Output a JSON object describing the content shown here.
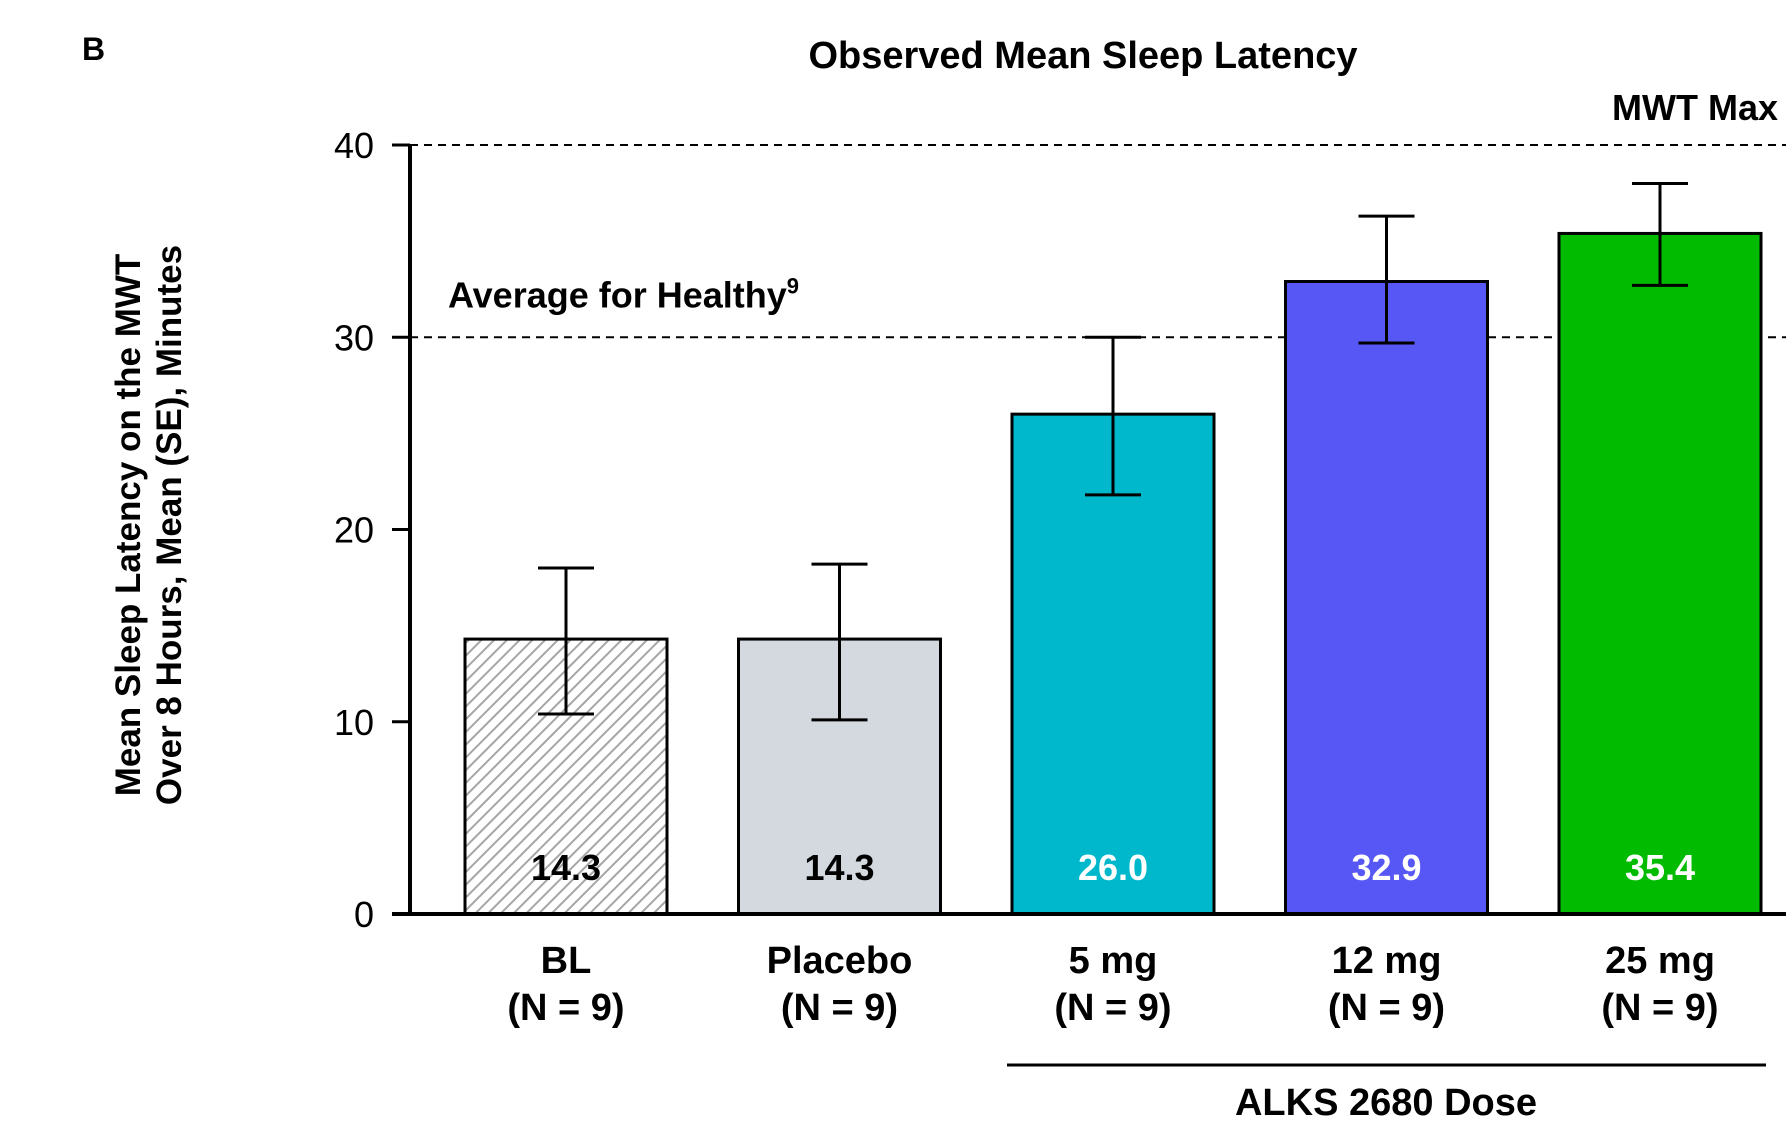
{
  "panel_label": "B",
  "colors": {
    "bl_fill": "#ffffff",
    "bl_hatch": "#a6a6a6",
    "placebo": "#d3d9df",
    "dose_5mg": "#00b8cc",
    "dose_12mg": "#5757f5",
    "dose_25mg": "#00bb00",
    "outline": "#000000"
  },
  "chart_data": {
    "type": "bar",
    "title": "Observed Mean Sleep Latency",
    "ylabel_line1": "Mean Sleep Latency on the MWT",
    "ylabel_line2": "Over 8 Hours, Mean (SE), Minutes",
    "ylim": [
      0,
      40
    ],
    "yticks": [
      "0",
      "10",
      "20",
      "30",
      "40"
    ],
    "categories": [
      {
        "name": "BL",
        "n": "(N = 9)"
      },
      {
        "name": "Placebo",
        "n": "(N = 9)"
      },
      {
        "name": "5 mg",
        "n": "(N = 9)"
      },
      {
        "name": "12 mg",
        "n": "(N = 9)"
      },
      {
        "name": "25 mg",
        "n": "(N = 9)"
      }
    ],
    "values": [
      14.3,
      14.3,
      26.0,
      32.9,
      35.4
    ],
    "value_labels": [
      "14.3",
      "14.3",
      "26.0",
      "32.9",
      "35.4"
    ],
    "error_low": [
      10.4,
      10.1,
      21.8,
      29.7,
      32.7
    ],
    "error_high": [
      18.0,
      18.2,
      30.0,
      36.3,
      38.0
    ],
    "reference_lines": [
      {
        "value": 40,
        "label": "MWT Max",
        "sup": ""
      },
      {
        "value": 30,
        "label": "Average for Healthy",
        "sup": "9"
      }
    ],
    "group_label": "ALKS 2680 Dose",
    "grid": false
  }
}
